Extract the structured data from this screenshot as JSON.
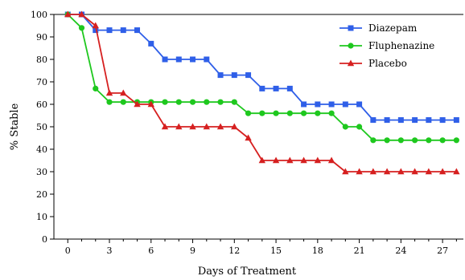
{
  "chart_data": {
    "type": "line",
    "title": "",
    "xlabel": "Days of Treatment",
    "ylabel": "% Stable",
    "xlim": [
      -1,
      28.5
    ],
    "ylim": [
      0,
      100
    ],
    "x_ticks": [
      0,
      3,
      6,
      9,
      12,
      15,
      18,
      21,
      24,
      27
    ],
    "y_ticks": [
      0,
      10,
      20,
      30,
      40,
      50,
      60,
      70,
      80,
      90,
      100
    ],
    "grid": false,
    "legend_position": "top-right",
    "series": [
      {
        "name": "Diazepam",
        "color": "#2f5fe8",
        "marker": "square",
        "x": [
          0,
          1,
          2,
          3,
          4,
          5,
          6,
          7,
          8,
          9,
          10,
          11,
          12,
          13,
          14,
          15,
          16,
          17,
          18,
          19,
          20,
          21,
          22,
          23,
          24,
          25,
          26,
          27,
          28
        ],
        "y": [
          100,
          100,
          93,
          93,
          93,
          93,
          87,
          80,
          80,
          80,
          80,
          73,
          73,
          73,
          67,
          67,
          67,
          60,
          60,
          60,
          60,
          60,
          53,
          53,
          53,
          53,
          53,
          53,
          53
        ]
      },
      {
        "name": "Fluphenazine",
        "color": "#1ec81e",
        "marker": "circle",
        "x": [
          0,
          1,
          2,
          3,
          4,
          5,
          6,
          7,
          8,
          9,
          10,
          11,
          12,
          13,
          14,
          15,
          16,
          17,
          18,
          19,
          20,
          21,
          22,
          23,
          24,
          25,
          26,
          27,
          28
        ],
        "y": [
          100,
          94,
          67,
          61,
          61,
          61,
          61,
          61,
          61,
          61,
          61,
          61,
          61,
          56,
          56,
          56,
          56,
          56,
          56,
          56,
          50,
          50,
          44,
          44,
          44,
          44,
          44,
          44,
          44
        ]
      },
      {
        "name": "Placebo",
        "color": "#d62020",
        "marker": "triangle",
        "x": [
          0,
          1,
          2,
          3,
          4,
          5,
          6,
          7,
          8,
          9,
          10,
          11,
          12,
          13,
          14,
          15,
          16,
          17,
          18,
          19,
          20,
          21,
          22,
          23,
          24,
          25,
          26,
          27,
          28
        ],
        "y": [
          100,
          100,
          95,
          65,
          65,
          60,
          60,
          50,
          50,
          50,
          50,
          50,
          50,
          45,
          35,
          35,
          35,
          35,
          35,
          35,
          30,
          30,
          30,
          30,
          30,
          30,
          30,
          30,
          30
        ]
      }
    ]
  }
}
